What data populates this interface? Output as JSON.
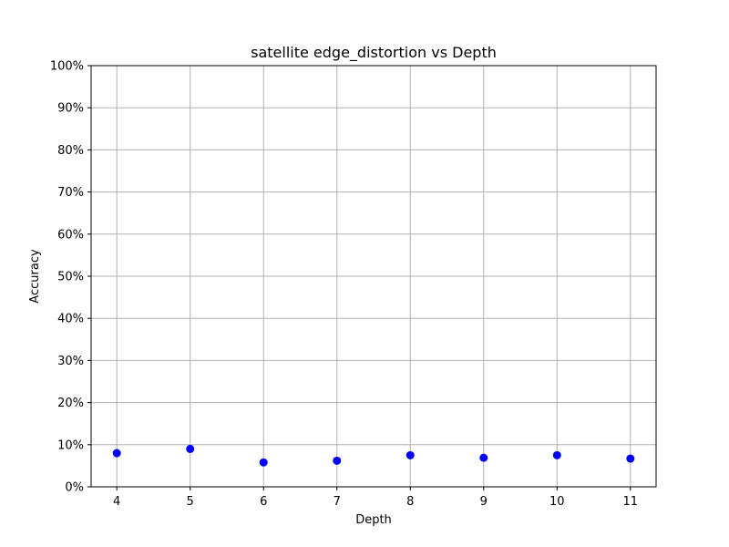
{
  "chart_data": {
    "type": "scatter",
    "title": "satellite edge_distortion vs Depth",
    "xlabel": "Depth",
    "ylabel": "Accuracy",
    "x": [
      4,
      5,
      6,
      7,
      8,
      9,
      10,
      11
    ],
    "y": [
      0.08,
      0.09,
      0.058,
      0.062,
      0.075,
      0.069,
      0.075,
      0.067
    ],
    "xlim": [
      3.65,
      11.35
    ],
    "ylim": [
      0,
      1
    ],
    "xticks": [
      4,
      5,
      6,
      7,
      8,
      9,
      10,
      11
    ],
    "yticks": [
      0,
      0.1,
      0.2,
      0.3,
      0.4,
      0.5,
      0.6,
      0.7,
      0.8,
      0.9,
      1.0
    ],
    "ytick_labels": [
      "0%",
      "10%",
      "20%",
      "30%",
      "40%",
      "50%",
      "60%",
      "70%",
      "80%",
      "90%",
      "100%"
    ],
    "grid": true,
    "marker_color": "#0000ff",
    "grid_color": "#b0b0b0"
  }
}
